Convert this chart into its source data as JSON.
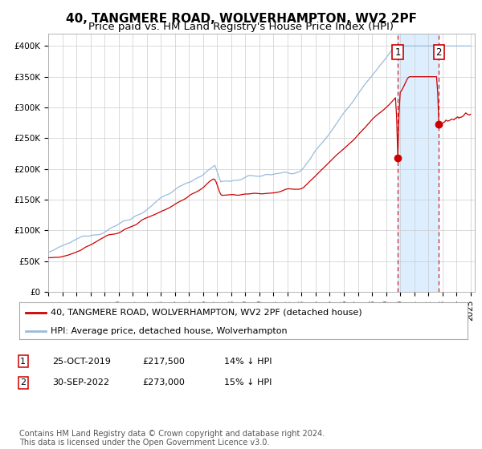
{
  "title": "40, TANGMERE ROAD, WOLVERHAMPTON, WV2 2PF",
  "subtitle": "Price paid vs. HM Land Registry's House Price Index (HPI)",
  "ylim": [
    0,
    420000
  ],
  "yticks": [
    0,
    50000,
    100000,
    150000,
    200000,
    250000,
    300000,
    350000,
    400000
  ],
  "ytick_labels": [
    "£0",
    "£50K",
    "£100K",
    "£150K",
    "£200K",
    "£250K",
    "£300K",
    "£350K",
    "£400K"
  ],
  "hpi_color": "#99bbdd",
  "price_color": "#cc0000",
  "marker_color": "#cc0000",
  "vline_color": "#cc2222",
  "shade_color": "#ddeeff",
  "grid_color": "#cccccc",
  "bg_color": "#ffffff",
  "sale1_date_num": 2019.82,
  "sale1_price": 217500,
  "sale2_date_num": 2022.75,
  "sale2_price": 273000,
  "legend_label_red": "40, TANGMERE ROAD, WOLVERHAMPTON, WV2 2PF (detached house)",
  "legend_label_blue": "HPI: Average price, detached house, Wolverhampton",
  "table_rows": [
    {
      "num": "1",
      "date": "25-OCT-2019",
      "price": "£217,500",
      "note": "14% ↓ HPI"
    },
    {
      "num": "2",
      "date": "30-SEP-2022",
      "price": "£273,000",
      "note": "15% ↓ HPI"
    }
  ],
  "footer": "Contains HM Land Registry data © Crown copyright and database right 2024.\nThis data is licensed under the Open Government Licence v3.0.",
  "title_fontsize": 11,
  "subtitle_fontsize": 9.5,
  "tick_fontsize": 7.5,
  "legend_fontsize": 8,
  "table_fontsize": 8,
  "footer_fontsize": 7
}
